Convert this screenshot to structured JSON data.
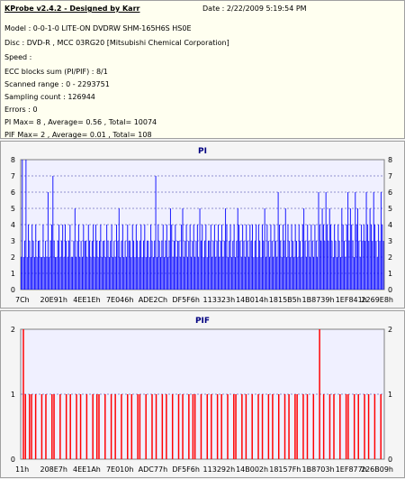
{
  "header": {
    "title": "KProbe v2.4.2 - Designed by Karr",
    "date": "Date : 2/22/2009 5:19:54 PM",
    "model": "Model : 0-0-1-0 LITE-ON DVDRW SHM-165H6S HS0E",
    "disc": "Disc : DVD-R , MCC 03RG20   [Mitsubishi Chemical Corporation]",
    "speed": "Speed :",
    "ecc": "ECC blocks sum (PI/PIF) : 8/1",
    "scanned_range": "Scanned range : 0 - 2293751",
    "sampling_count": "Sampling count : 126944",
    "errors": "Errors : 0",
    "pi_summary": "PI Max= 8 , Average= 0.56 , Total= 10074",
    "pif_summary": "PIF Max= 2 , Average= 0.01 , Total= 108"
  },
  "colors": {
    "pi_bar": "#0000ff",
    "pif_bar": "#ff0000",
    "title_color": "#000080",
    "plot_bg": "#f0f0ff"
  },
  "chart_data": [
    {
      "type": "bar",
      "title": "PI",
      "ylim": [
        0,
        8
      ],
      "yticks": [
        "0",
        "1",
        "2",
        "3",
        "4",
        "5",
        "6",
        "7",
        "8"
      ],
      "xticks": [
        "7Ch",
        "20E91h",
        "4EE1Eh",
        "7E046h",
        "ADE2Ch",
        "DF5F6h",
        "113323h",
        "14B014h",
        "1815B5h",
        "1B8739h",
        "1EF841h",
        "2269E8h"
      ],
      "grid": true,
      "series": [
        {
          "values": [
            2,
            8,
            2,
            3,
            8,
            2,
            4,
            3,
            2,
            4,
            3,
            2,
            4,
            2,
            3,
            3,
            2,
            2,
            4,
            2,
            3,
            2,
            6,
            2,
            3,
            4,
            7,
            3,
            2,
            2,
            3,
            4,
            2,
            3,
            4,
            2,
            4,
            3,
            2,
            3,
            4,
            2,
            2,
            3,
            5,
            2,
            3,
            4,
            2,
            3,
            2,
            4,
            3,
            3,
            2,
            4,
            3,
            2,
            3,
            4,
            2,
            4,
            3,
            2,
            3,
            4,
            2,
            3,
            3,
            2,
            4,
            3,
            2,
            3,
            4,
            2,
            3,
            2,
            4,
            3,
            5,
            2,
            3,
            4,
            2,
            3,
            2,
            4,
            3,
            3,
            2,
            4,
            3,
            2,
            4,
            3,
            2,
            3,
            4,
            2,
            3,
            4,
            2,
            3,
            3,
            2,
            4,
            3,
            2,
            3,
            7,
            2,
            4,
            3,
            2,
            3,
            4,
            2,
            3,
            4,
            2,
            3,
            5,
            4,
            2,
            3,
            4,
            2,
            3,
            3,
            2,
            4,
            5,
            2,
            3,
            4,
            2,
            3,
            4,
            2,
            3,
            4,
            2,
            3,
            4,
            2,
            5,
            3,
            4,
            2,
            3,
            4,
            2,
            3,
            3,
            4,
            2,
            3,
            4,
            2,
            3,
            4,
            2,
            3,
            4,
            2,
            3,
            5,
            4,
            2,
            3,
            4,
            2,
            3,
            4,
            2,
            3,
            5,
            4,
            3,
            2,
            4,
            3,
            2,
            4,
            3,
            2,
            4,
            3,
            4,
            2,
            3,
            4,
            2,
            4,
            3,
            2,
            4,
            3,
            5,
            2,
            4,
            3,
            2,
            4,
            3,
            2,
            4,
            3,
            2,
            6,
            4,
            3,
            2,
            4,
            3,
            5,
            2,
            4,
            3,
            2,
            4,
            3,
            2,
            4,
            3,
            2,
            4,
            3,
            2,
            4,
            5,
            3,
            2,
            4,
            3,
            2,
            4,
            3,
            2,
            4,
            3,
            2,
            6,
            4,
            3,
            5,
            4,
            3,
            6,
            4,
            3,
            5,
            4,
            3,
            2,
            4,
            3,
            2,
            4,
            3,
            2,
            5,
            4,
            3,
            2,
            4,
            6,
            3,
            5,
            4,
            3,
            2,
            6,
            4,
            5,
            3,
            2,
            4,
            3,
            4,
            3,
            6,
            4,
            3,
            5,
            4,
            3,
            6,
            4,
            3,
            2,
            4,
            3,
            6,
            4,
            3
          ]
        }
      ]
    },
    {
      "type": "bar",
      "title": "PIF",
      "ylim": [
        0,
        2
      ],
      "yticks": [
        "0",
        "1",
        "2"
      ],
      "xticks": [
        "11h",
        "208E7h",
        "4EE1Ah",
        "7E010h",
        "ADC77h",
        "DF5F6h",
        "113292h",
        "14B002h",
        "18157Fh",
        "1B8703h",
        "1EF877h",
        "226B09h"
      ],
      "grid": true,
      "series": [
        {
          "values": [
            0,
            2,
            1,
            0,
            1,
            1,
            0,
            1,
            0,
            0,
            1,
            0,
            1,
            0,
            0,
            1,
            1,
            0,
            0,
            1,
            0,
            0,
            1,
            0,
            1,
            0,
            0,
            1,
            0,
            1,
            0,
            0,
            1,
            0,
            0,
            1,
            0,
            1,
            1,
            0,
            0,
            1,
            0,
            0,
            1,
            0,
            1,
            0,
            0,
            1,
            0,
            0,
            1,
            0,
            1,
            0,
            0,
            1,
            1,
            0,
            0,
            1,
            0,
            0,
            1,
            0,
            1,
            0,
            0,
            1,
            0,
            1,
            0,
            0,
            1,
            0,
            0,
            1,
            0,
            1,
            0,
            0,
            1,
            0,
            1,
            1,
            0,
            0,
            1,
            0,
            0,
            1,
            0,
            1,
            0,
            0,
            1,
            0,
            1,
            0,
            0,
            1,
            0,
            0,
            1,
            1,
            0,
            0,
            1,
            0,
            1,
            0,
            0,
            1,
            0,
            0,
            1,
            0,
            1,
            0,
            0,
            1,
            0,
            1,
            0,
            0,
            1,
            0,
            0,
            1,
            0,
            1,
            0,
            0,
            1,
            1,
            0,
            0,
            1,
            0,
            1,
            0,
            0,
            1,
            0,
            0,
            2,
            0,
            1,
            0,
            0,
            1,
            0,
            1,
            0,
            0,
            1,
            0,
            0,
            1,
            1,
            0,
            0,
            1,
            0,
            1,
            0,
            0,
            1,
            0,
            1,
            0,
            0,
            1,
            0,
            0,
            1,
            0
          ]
        }
      ]
    }
  ]
}
